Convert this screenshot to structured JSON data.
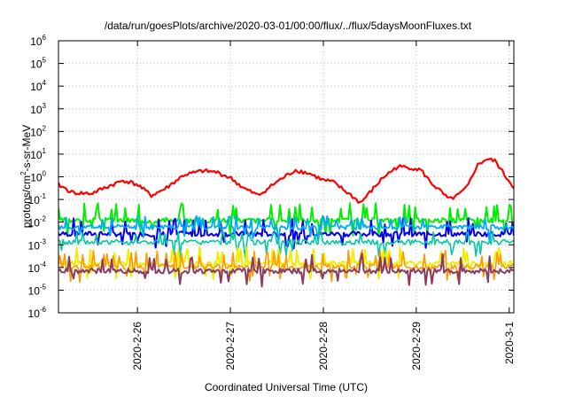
{
  "chart_data": {
    "type": "line",
    "title": "/data/run/goesPlots/archive/2020-03-01/00:00/flux/../flux/5daysMoonFluxes.txt",
    "xlabel": "Coordinated Universal Time (UTC)",
    "ylabel": {
      "prefix": "protons/cm",
      "sup": "2",
      "suffix": "-s-sr-MeV"
    },
    "yscale": "log",
    "ylim_exponents": [
      -6,
      6
    ],
    "y_tick_labels": [
      {
        "base": "10",
        "exp": "-6",
        "value": 1e-06
      },
      {
        "base": "10",
        "exp": "-5",
        "value": 1e-05
      },
      {
        "base": "10",
        "exp": "-4",
        "value": 0.0001
      },
      {
        "base": "10",
        "exp": "-3",
        "value": 0.001
      },
      {
        "base": "10",
        "exp": "-2",
        "value": 0.01
      },
      {
        "base": "10",
        "exp": "-1",
        "value": 0.1
      },
      {
        "base": "10",
        "exp": "0",
        "value": 1
      },
      {
        "base": "10",
        "exp": "1",
        "value": 10
      },
      {
        "base": "10",
        "exp": "2",
        "value": 100
      },
      {
        "base": "10",
        "exp": "3",
        "value": 1000
      },
      {
        "base": "10",
        "exp": "4",
        "value": 10000
      },
      {
        "base": "10",
        "exp": "5",
        "value": 100000
      },
      {
        "base": "10",
        "exp": "6",
        "value": 1000000
      }
    ],
    "xlim_days": [
      25.15,
      30.05
    ],
    "x_ticks": [
      {
        "label": "2020-2-26",
        "day": 26
      },
      {
        "label": "2020-2-27",
        "day": 27
      },
      {
        "label": "2020-2-28",
        "day": 28
      },
      {
        "label": "2020-2-29",
        "day": 29
      },
      {
        "label": "2020-3-1",
        "day": 30
      }
    ],
    "grid": true,
    "legend": "none",
    "series": [
      {
        "color": "#ff0000",
        "width": 2.2,
        "style": "smooth",
        "x": [
          25.15,
          25.3,
          25.5,
          25.7,
          25.85,
          26.0,
          26.15,
          26.3,
          26.5,
          26.7,
          26.85,
          27.0,
          27.15,
          27.3,
          27.5,
          27.7,
          27.85,
          28.0,
          28.1,
          28.2,
          28.3,
          28.4,
          28.5,
          28.65,
          28.8,
          28.95,
          29.05,
          29.15,
          29.25,
          29.35,
          29.45,
          29.55,
          29.65,
          29.75,
          29.85,
          29.95,
          30.05
        ],
        "y": [
          0.45,
          0.2,
          0.18,
          0.4,
          0.7,
          0.45,
          0.15,
          0.3,
          1.2,
          1.8,
          1.6,
          0.9,
          0.3,
          0.15,
          0.6,
          2.0,
          1.4,
          0.7,
          0.6,
          0.3,
          0.15,
          0.07,
          0.2,
          1.0,
          2.8,
          2.5,
          2.0,
          0.6,
          0.25,
          0.1,
          0.15,
          0.35,
          3.0,
          6.0,
          5.0,
          1.2,
          0.35
        ]
      },
      {
        "color": "#00ee00",
        "width": 2.0,
        "style": "spiky",
        "base": 0.012,
        "spike": 0.07,
        "seed": 3
      },
      {
        "color": "#0000ee",
        "width": 2.0,
        "style": "spiky",
        "base": 0.003,
        "spike": 0.015,
        "seed": 7
      },
      {
        "color": "#00aaff",
        "width": 1.8,
        "style": "spiky",
        "base": 0.006,
        "spike": 0.02,
        "seed": 11
      },
      {
        "color": "#00c8a0",
        "width": 1.6,
        "style": "spiky",
        "base": 0.0013,
        "spike": 0.004,
        "seed": 5
      },
      {
        "color": "#eeee00",
        "width": 2.0,
        "style": "spiky",
        "base": 0.00015,
        "spike": 0.0008,
        "seed": 13
      },
      {
        "color": "#ff9900",
        "width": 1.6,
        "style": "spiky",
        "base": 0.00011,
        "spike": 0.0006,
        "seed": 17
      },
      {
        "color": "#8b3a62",
        "width": 2.0,
        "style": "spiky",
        "base": 7e-05,
        "spike": 0.00045,
        "seed": 19
      }
    ]
  }
}
